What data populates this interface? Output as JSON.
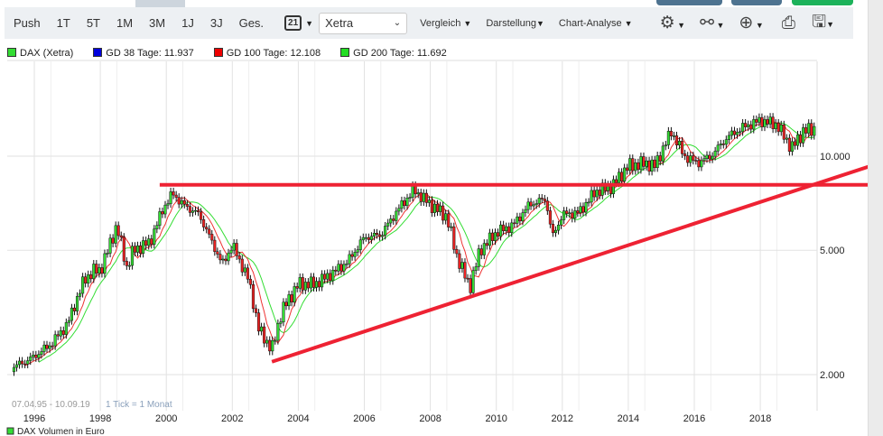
{
  "toolbar": {
    "ranges": [
      "Push",
      "1T",
      "5T",
      "1M",
      "3M",
      "1J",
      "3J",
      "Ges."
    ],
    "active_range": "3M",
    "calendar_day": "21",
    "exchange": "Xetra",
    "menus": [
      "Vergleich",
      "Darstellung",
      "Chart-Analyse"
    ],
    "icons": [
      "gear-icon",
      "network-icon",
      "zoom-in-icon",
      "print-icon",
      "save-icon"
    ]
  },
  "legend": [
    {
      "label": "DAX (Xetra)",
      "color": "#33dd33"
    },
    {
      "label": "GD 38 Tage: 11.937",
      "color": "#0000dd"
    },
    {
      "label": "GD 100 Tage: 12.108",
      "color": "#ee0000"
    },
    {
      "label": "GD 200 Tage: 11.692",
      "color": "#22dd22"
    }
  ],
  "footer": {
    "range": "07.04.95 - 10.09.19",
    "tick": "1 Tick = 1 Monat",
    "volume_label": "DAX Volumen in Euro"
  },
  "colors": {
    "toolbar_bg": "#edf0f3",
    "trendline": "#ee2233",
    "ma100": "#ee3333",
    "ma200": "#33dd33"
  },
  "chart_data": {
    "type": "candlestick",
    "yscale": "log",
    "yticks": [
      "10.000",
      "5.000",
      "2.000"
    ],
    "yticks_values": [
      10000,
      5000,
      2000
    ],
    "xticks": [
      "1996",
      "1998",
      "2000",
      "2002",
      "2004",
      "2006",
      "2008",
      "2010",
      "2012",
      "2014",
      "2016",
      "2018"
    ],
    "xlim": [
      1995.27,
      2019.7
    ],
    "grid": true,
    "series": [
      {
        "name": "DAX (Xetra)",
        "x": [
          1995.3,
          1995.9,
          1996.5,
          1997.0,
          1997.5,
          1997.8,
          1998.0,
          1998.5,
          1998.8,
          1999.0,
          1999.5,
          1999.9,
          2000.2,
          2000.5,
          2001.0,
          2001.7,
          2002.0,
          2002.5,
          2002.8,
          2003.2,
          2003.5,
          2004.0,
          2004.5,
          2005.0,
          2005.5,
          2006.0,
          2006.5,
          2007.0,
          2007.5,
          2008.0,
          2008.5,
          2008.8,
          2009.2,
          2009.5,
          2010.0,
          2010.5,
          2011.0,
          2011.5,
          2011.7,
          2012.0,
          2012.5,
          2013.0,
          2013.5,
          2014.0,
          2014.5,
          2014.8,
          2015.3,
          2015.7,
          2016.1,
          2016.5,
          2017.0,
          2017.5,
          2018.0,
          2018.5,
          2018.95,
          2019.3,
          2019.7
        ],
        "y": [
          2100,
          2250,
          2500,
          2900,
          4000,
          4300,
          4300,
          6000,
          4400,
          5000,
          5300,
          6800,
          7600,
          7000,
          6500,
          4500,
          5200,
          4000,
          2800,
          2400,
          3200,
          3900,
          3900,
          4200,
          4600,
          5500,
          5600,
          6700,
          7800,
          7000,
          6400,
          4800,
          3800,
          5000,
          5700,
          6000,
          7000,
          7300,
          5500,
          6500,
          6600,
          7700,
          8000,
          9300,
          9500,
          9300,
          12000,
          10000,
          9500,
          10000,
          11500,
          12400,
          13000,
          12600,
          10600,
          12000,
          12300
        ]
      }
    ],
    "annotations": [
      {
        "type": "horizontal-line",
        "value": 8100,
        "from": 1999.8
      },
      {
        "type": "trendline",
        "from": [
          2003.2,
          2200
        ],
        "to": [
          2019.6,
          8100
        ]
      }
    ]
  }
}
